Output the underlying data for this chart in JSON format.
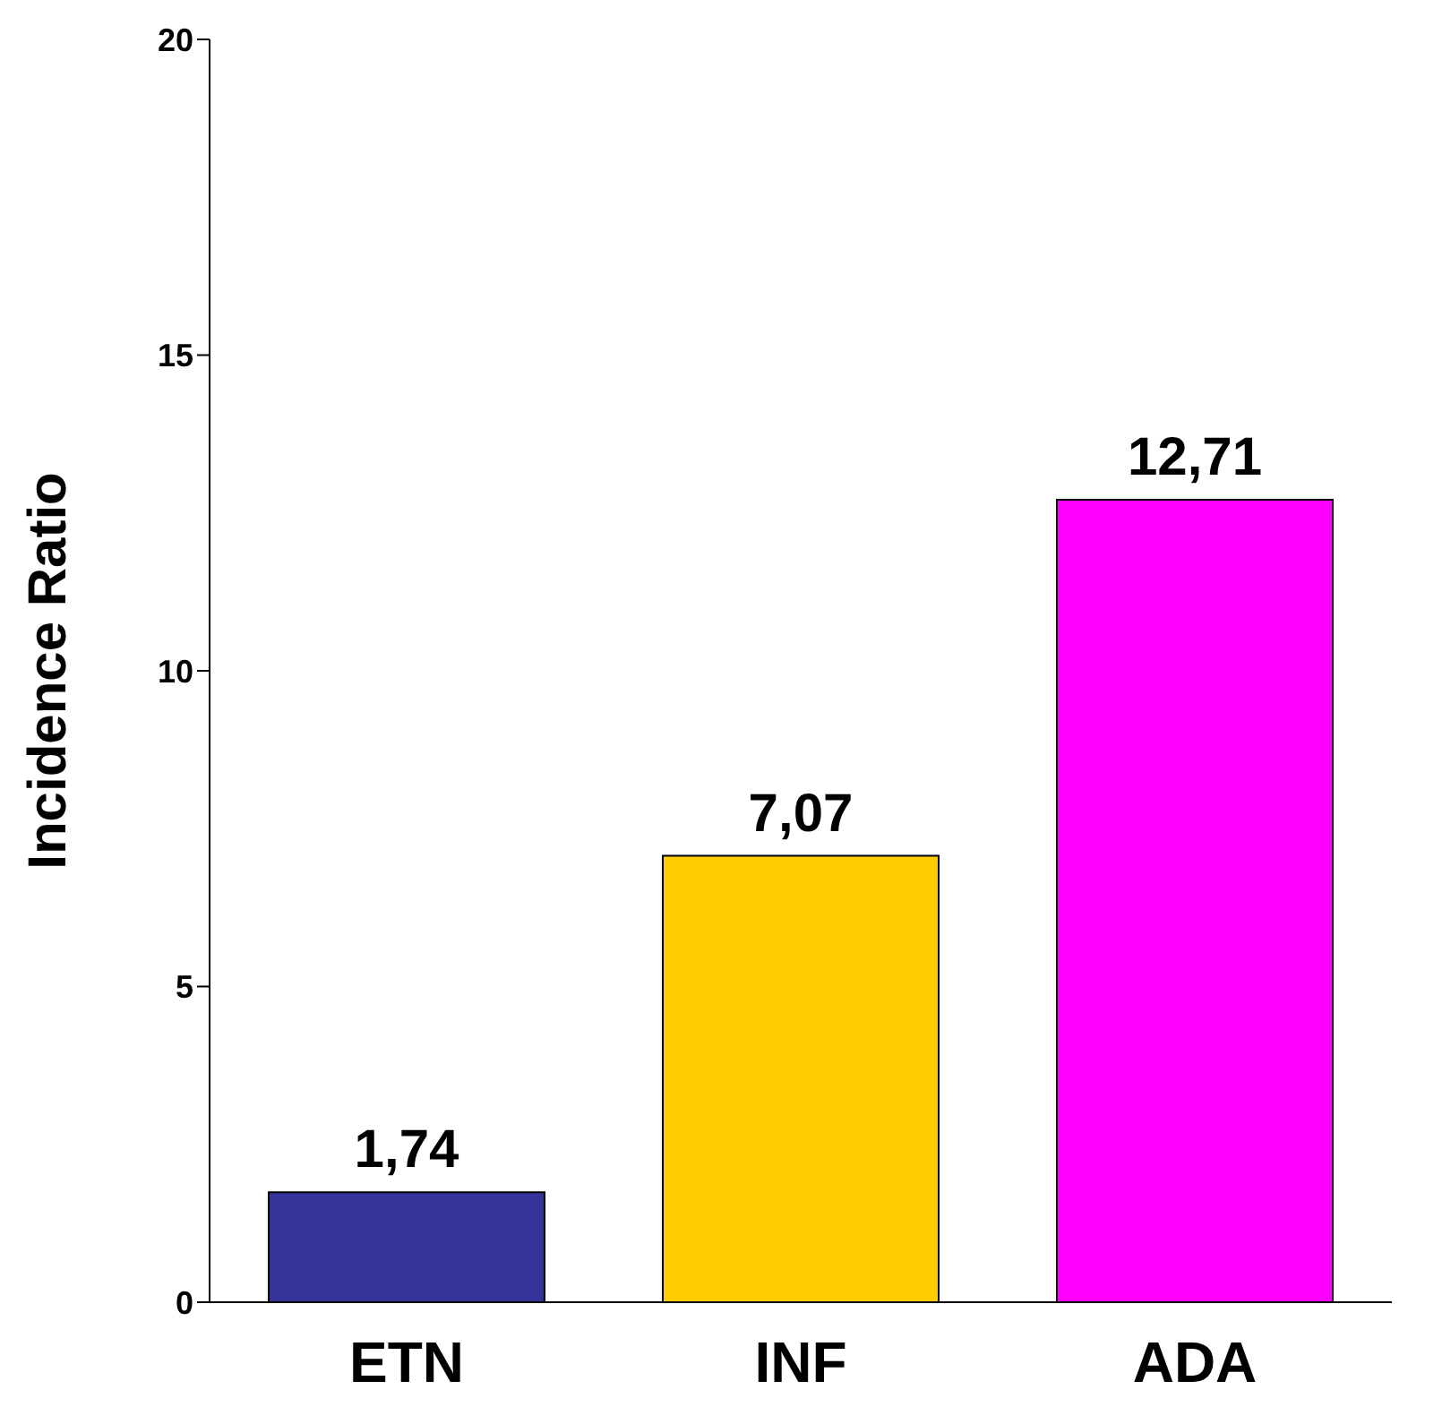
{
  "chart_data": {
    "type": "bar",
    "ylabel": "Incidence Ratio",
    "categories": [
      "ETN",
      "INF",
      "ADA"
    ],
    "values": [
      1.74,
      7.07,
      12.71
    ],
    "colors": [
      "#333399",
      "#ffcc00",
      "#ff00ff"
    ],
    "value_labels": [
      "1,74",
      "7,07",
      "12,71"
    ],
    "ylim": [
      0,
      20
    ],
    "yticks": [
      0,
      5,
      10,
      15,
      20
    ]
  }
}
